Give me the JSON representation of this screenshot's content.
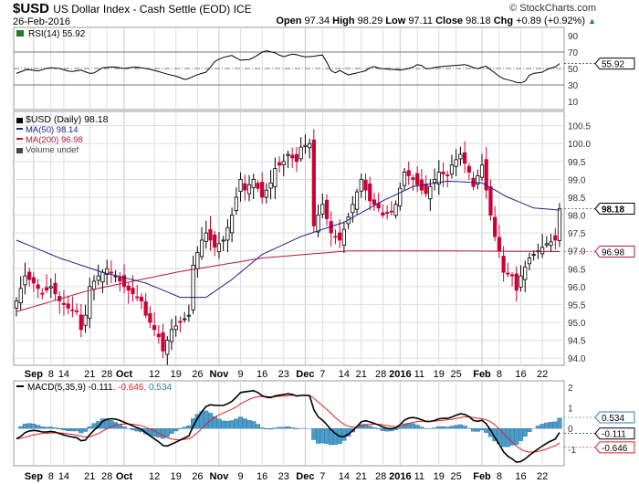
{
  "header": {
    "symbol": "$USD",
    "name": "US Dollar Index - Cash Settle (EOD) ICE",
    "date": "26-Feb-2016",
    "brand": "© StockCharts.com",
    "open_label": "Open",
    "open": "97.34",
    "high_label": "High",
    "high": "98.29",
    "low_label": "Low",
    "low": "97.11",
    "close_label": "Close",
    "close": "98.18",
    "chg_label": "Chg",
    "chg": "+0.89 (+0.92%)"
  },
  "colors": {
    "up": "#ffffff",
    "down": "#cc0033",
    "ma50": "#1f1f8a",
    "ma200": "#b5173a",
    "macd": "#000000",
    "signal": "#e02020",
    "hist": "#4a9cc9",
    "grid": "#dddddd"
  },
  "chart_data": [
    {
      "type": "line",
      "title": "RSI(14) 55.92",
      "legend": "RSI(14) 55.92",
      "y_ticks": [
        "90",
        "70",
        "50",
        "30",
        "10"
      ],
      "ylim": [
        0,
        100
      ],
      "levels": [
        70,
        30
      ],
      "last_label": "55.92",
      "rsi": [
        [
          0,
          44
        ],
        [
          3,
          49
        ],
        [
          6,
          47
        ],
        [
          9,
          51
        ],
        [
          12,
          50
        ],
        [
          15,
          46
        ],
        [
          18,
          48
        ],
        [
          21,
          43
        ],
        [
          24,
          51
        ],
        [
          27,
          52
        ],
        [
          30,
          50
        ],
        [
          33,
          52
        ],
        [
          36,
          50
        ],
        [
          39,
          47
        ],
        [
          42,
          43
        ],
        [
          45,
          40
        ],
        [
          47,
          36
        ],
        [
          50,
          42
        ],
        [
          53,
          46
        ],
        [
          55,
          58
        ],
        [
          57,
          63
        ],
        [
          60,
          66
        ],
        [
          62,
          60
        ],
        [
          65,
          61
        ],
        [
          67,
          66
        ],
        [
          69,
          72
        ],
        [
          72,
          69
        ],
        [
          74,
          64
        ],
        [
          77,
          68
        ],
        [
          80,
          64
        ],
        [
          83,
          65
        ],
        [
          85,
          67
        ],
        [
          86,
          60
        ],
        [
          88,
          43
        ],
        [
          90,
          48
        ],
        [
          92,
          42
        ],
        [
          95,
          45
        ],
        [
          97,
          47
        ],
        [
          99,
          53
        ],
        [
          101,
          50
        ],
        [
          104,
          49
        ],
        [
          107,
          48
        ],
        [
          110,
          51
        ],
        [
          112,
          56
        ],
        [
          114,
          49
        ],
        [
          117,
          52
        ],
        [
          120,
          53
        ],
        [
          123,
          54
        ],
        [
          125,
          55
        ],
        [
          127,
          51
        ],
        [
          129,
          49
        ],
        [
          130,
          55
        ],
        [
          132,
          48
        ],
        [
          135,
          38
        ],
        [
          137,
          36
        ],
        [
          139,
          33
        ],
        [
          141,
          32
        ],
        [
          143,
          44
        ],
        [
          146,
          45
        ],
        [
          148,
          50
        ],
        [
          150,
          52
        ],
        [
          151,
          56
        ]
      ]
    },
    {
      "type": "candlestick",
      "title": "$USD (Daily) 98.18",
      "legend": [
        {
          "name": "$USD (Daily) 98.18"
        },
        {
          "name": "MA(50) 98.14"
        },
        {
          "name": "MA(200) 96.98"
        },
        {
          "name": "Volume undef"
        }
      ],
      "y_ticks": [
        "100.5",
        "100.0",
        "99.5",
        "99.0",
        "98.5",
        "98.0",
        "97.5",
        "97.0",
        "96.5",
        "96.0",
        "95.5",
        "95.0",
        "94.5",
        "94.0"
      ],
      "ylim": [
        93.8,
        100.9
      ],
      "last_close_label": "98.18",
      "last_ma200_label": "96.98",
      "closes": [
        [
          0,
          95.6
        ],
        [
          2,
          96.3
        ],
        [
          4,
          96.1
        ],
        [
          6,
          95.8
        ],
        [
          8,
          96.0
        ],
        [
          10,
          95.6
        ],
        [
          12,
          95.4
        ],
        [
          14,
          95.3
        ],
        [
          15,
          94.8
        ],
        [
          16,
          95.2
        ],
        [
          17,
          96.0
        ],
        [
          19,
          96.3
        ],
        [
          21,
          96.5
        ],
        [
          23,
          96.3
        ],
        [
          25,
          96.0
        ],
        [
          27,
          95.8
        ],
        [
          29,
          95.6
        ],
        [
          30,
          95.2
        ],
        [
          32,
          94.8
        ],
        [
          33,
          94.6
        ],
        [
          34,
          94.2
        ],
        [
          36,
          94.8
        ],
        [
          38,
          95.0
        ],
        [
          40,
          95.2
        ],
        [
          41,
          96.6
        ],
        [
          43,
          97.3
        ],
        [
          44,
          97.5
        ],
        [
          46,
          97.1
        ],
        [
          48,
          97.3
        ],
        [
          50,
          98.0
        ],
        [
          52,
          99.0
        ],
        [
          53,
          98.7
        ],
        [
          55,
          99.0
        ],
        [
          57,
          98.5
        ],
        [
          59,
          98.9
        ],
        [
          60,
          99.3
        ],
        [
          62,
          99.5
        ],
        [
          63,
          99.7
        ],
        [
          65,
          99.5
        ],
        [
          66,
          99.9
        ],
        [
          68,
          100.0
        ],
        [
          69,
          97.7
        ],
        [
          70,
          98.0
        ],
        [
          71,
          98.3
        ],
        [
          73,
          97.5
        ],
        [
          75,
          97.3
        ],
        [
          76,
          97.6
        ],
        [
          78,
          98.3
        ],
        [
          80,
          99.0
        ],
        [
          82,
          98.4
        ],
        [
          84,
          98.2
        ],
        [
          85,
          98.0
        ],
        [
          87,
          98.1
        ],
        [
          88,
          98.3
        ],
        [
          90,
          99.2
        ],
        [
          92,
          99.0
        ],
        [
          94,
          98.7
        ],
        [
          95,
          98.6
        ],
        [
          97,
          99.0
        ],
        [
          98,
          99.2
        ],
        [
          100,
          99.1
        ],
        [
          101,
          99.4
        ],
        [
          103,
          99.7
        ],
        [
          105,
          99.2
        ],
        [
          106,
          98.8
        ],
        [
          108,
          99.4
        ],
        [
          110,
          98.0
        ],
        [
          111,
          97.4
        ],
        [
          112,
          97.0
        ],
        [
          113,
          96.4
        ],
        [
          115,
          96.3
        ],
        [
          116,
          95.9
        ],
        [
          117,
          96.3
        ],
        [
          119,
          96.8
        ],
        [
          121,
          97.0
        ],
        [
          123,
          97.2
        ],
        [
          125,
          97.3
        ],
        [
          126,
          98.18
        ]
      ],
      "ma50": [
        [
          0,
          97.3
        ],
        [
          10,
          96.8
        ],
        [
          20,
          96.4
        ],
        [
          30,
          96.1
        ],
        [
          38,
          95.7
        ],
        [
          44,
          95.7
        ],
        [
          50,
          96.2
        ],
        [
          57,
          96.9
        ],
        [
          66,
          97.4
        ],
        [
          76,
          97.8
        ],
        [
          85,
          98.4
        ],
        [
          92,
          98.8
        ],
        [
          100,
          98.95
        ],
        [
          108,
          98.9
        ],
        [
          114,
          98.5
        ],
        [
          120,
          98.2
        ],
        [
          126,
          98.14
        ]
      ],
      "ma200": [
        [
          0,
          95.3
        ],
        [
          17,
          95.9
        ],
        [
          37,
          96.4
        ],
        [
          57,
          96.8
        ],
        [
          77,
          97.0
        ],
        [
          97,
          97.0
        ],
        [
          126,
          96.98
        ]
      ]
    },
    {
      "type": "line",
      "title": "MACD(5,35,9)",
      "legend": {
        "name": "MACD(5,35,9)",
        "macd": "-0.111",
        "signal": "-0.646",
        "hist": "0.534"
      },
      "y_ticks": [
        "2",
        "1",
        "0",
        "-1"
      ],
      "ylim": [
        -1.8,
        2.3
      ],
      "last_labels": {
        "hist": "0.534",
        "macd": "-0.111",
        "signal": "-0.646"
      }
    }
  ],
  "x_axis": {
    "labels": [
      {
        "label": "Sep",
        "day": 4,
        "bold": true
      },
      {
        "label": "8",
        "day": 8
      },
      {
        "label": "14",
        "day": 11
      },
      {
        "label": "21",
        "day": 17
      },
      {
        "label": "28",
        "day": 21
      },
      {
        "label": "Oct",
        "day": 25,
        "bold": true
      },
      {
        "label": "12",
        "day": 32
      },
      {
        "label": "19",
        "day": 37
      },
      {
        "label": "26",
        "day": 42
      },
      {
        "label": "Nov",
        "day": 47,
        "bold": true
      },
      {
        "label": "9",
        "day": 52
      },
      {
        "label": "16",
        "day": 57
      },
      {
        "label": "23",
        "day": 62
      },
      {
        "label": "Dec",
        "day": 67,
        "bold": true
      },
      {
        "label": "7",
        "day": 71
      },
      {
        "label": "14",
        "day": 76
      },
      {
        "label": "21",
        "day": 80
      },
      {
        "label": "28",
        "day": 85
      },
      {
        "label": "2016",
        "day": 89,
        "bold": true
      },
      {
        "label": "11",
        "day": 93
      },
      {
        "label": "19",
        "day": 98
      },
      {
        "label": "25",
        "day": 102
      },
      {
        "label": "Feb",
        "day": 108,
        "bold": true
      },
      {
        "label": "8",
        "day": 112
      },
      {
        "label": "16",
        "day": 117
      },
      {
        "label": "22",
        "day": 122
      }
    ],
    "days": 127
  }
}
